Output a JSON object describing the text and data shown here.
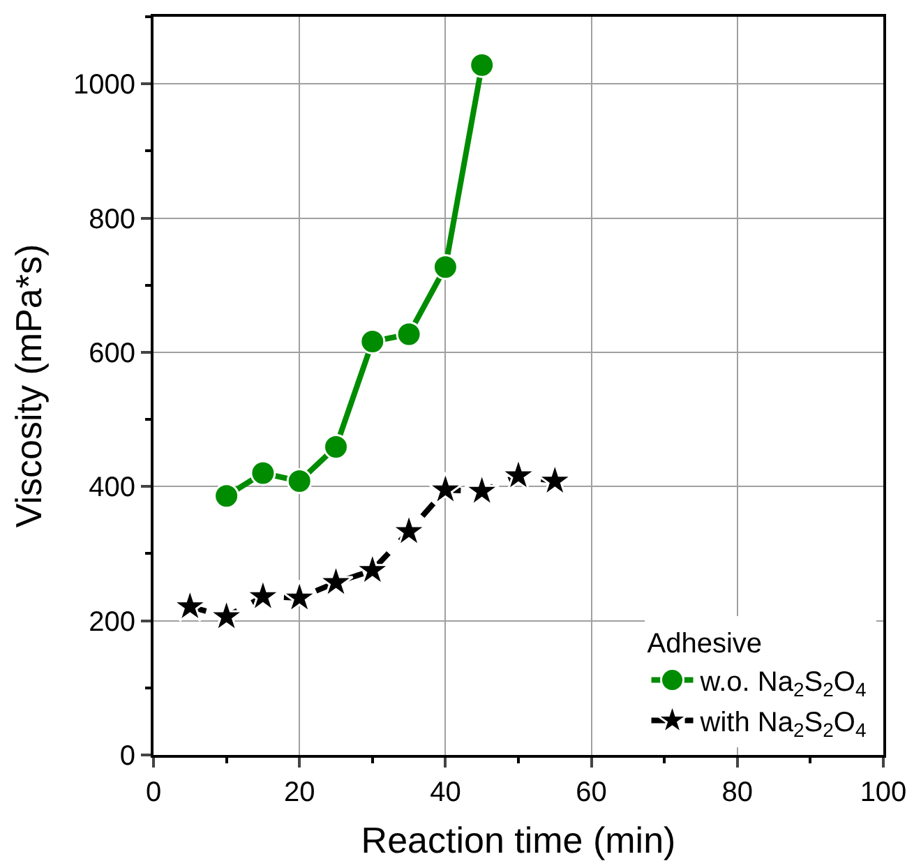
{
  "chart_data": {
    "type": "line",
    "xlabel": "Reaction time (min)",
    "ylabel": "Viscosity (mPa*s)",
    "legend_title": "Adhesive",
    "xlim": [
      0,
      100
    ],
    "xticks": [
      0,
      20,
      40,
      60,
      80,
      100
    ],
    "ylim": [
      0,
      1100
    ],
    "yticks": [
      0,
      200,
      400,
      600,
      800,
      1000
    ],
    "grid": true,
    "legend": "bottom right",
    "series": [
      {
        "name": "w.o. Na$_{2}$S$_{2}$O$_{4}$",
        "color": "#008c00",
        "marker": "circle",
        "line_style": "solid",
        "x": [
          10,
          15,
          20,
          25,
          30,
          35,
          40,
          45
        ],
        "values": [
          386,
          420,
          408,
          459,
          616,
          627,
          727,
          1028
        ]
      },
      {
        "name": "with Na$_{2}$S$_{2}$O$_{4}$",
        "color": "#000000",
        "marker": "star",
        "line_style": "dashed",
        "x": [
          5,
          10,
          15,
          20,
          25,
          30,
          35,
          40,
          45,
          50,
          55
        ],
        "values": [
          221,
          206,
          236,
          234,
          257,
          275,
          333,
          395,
          393,
          416,
          408
        ]
      }
    ]
  }
}
